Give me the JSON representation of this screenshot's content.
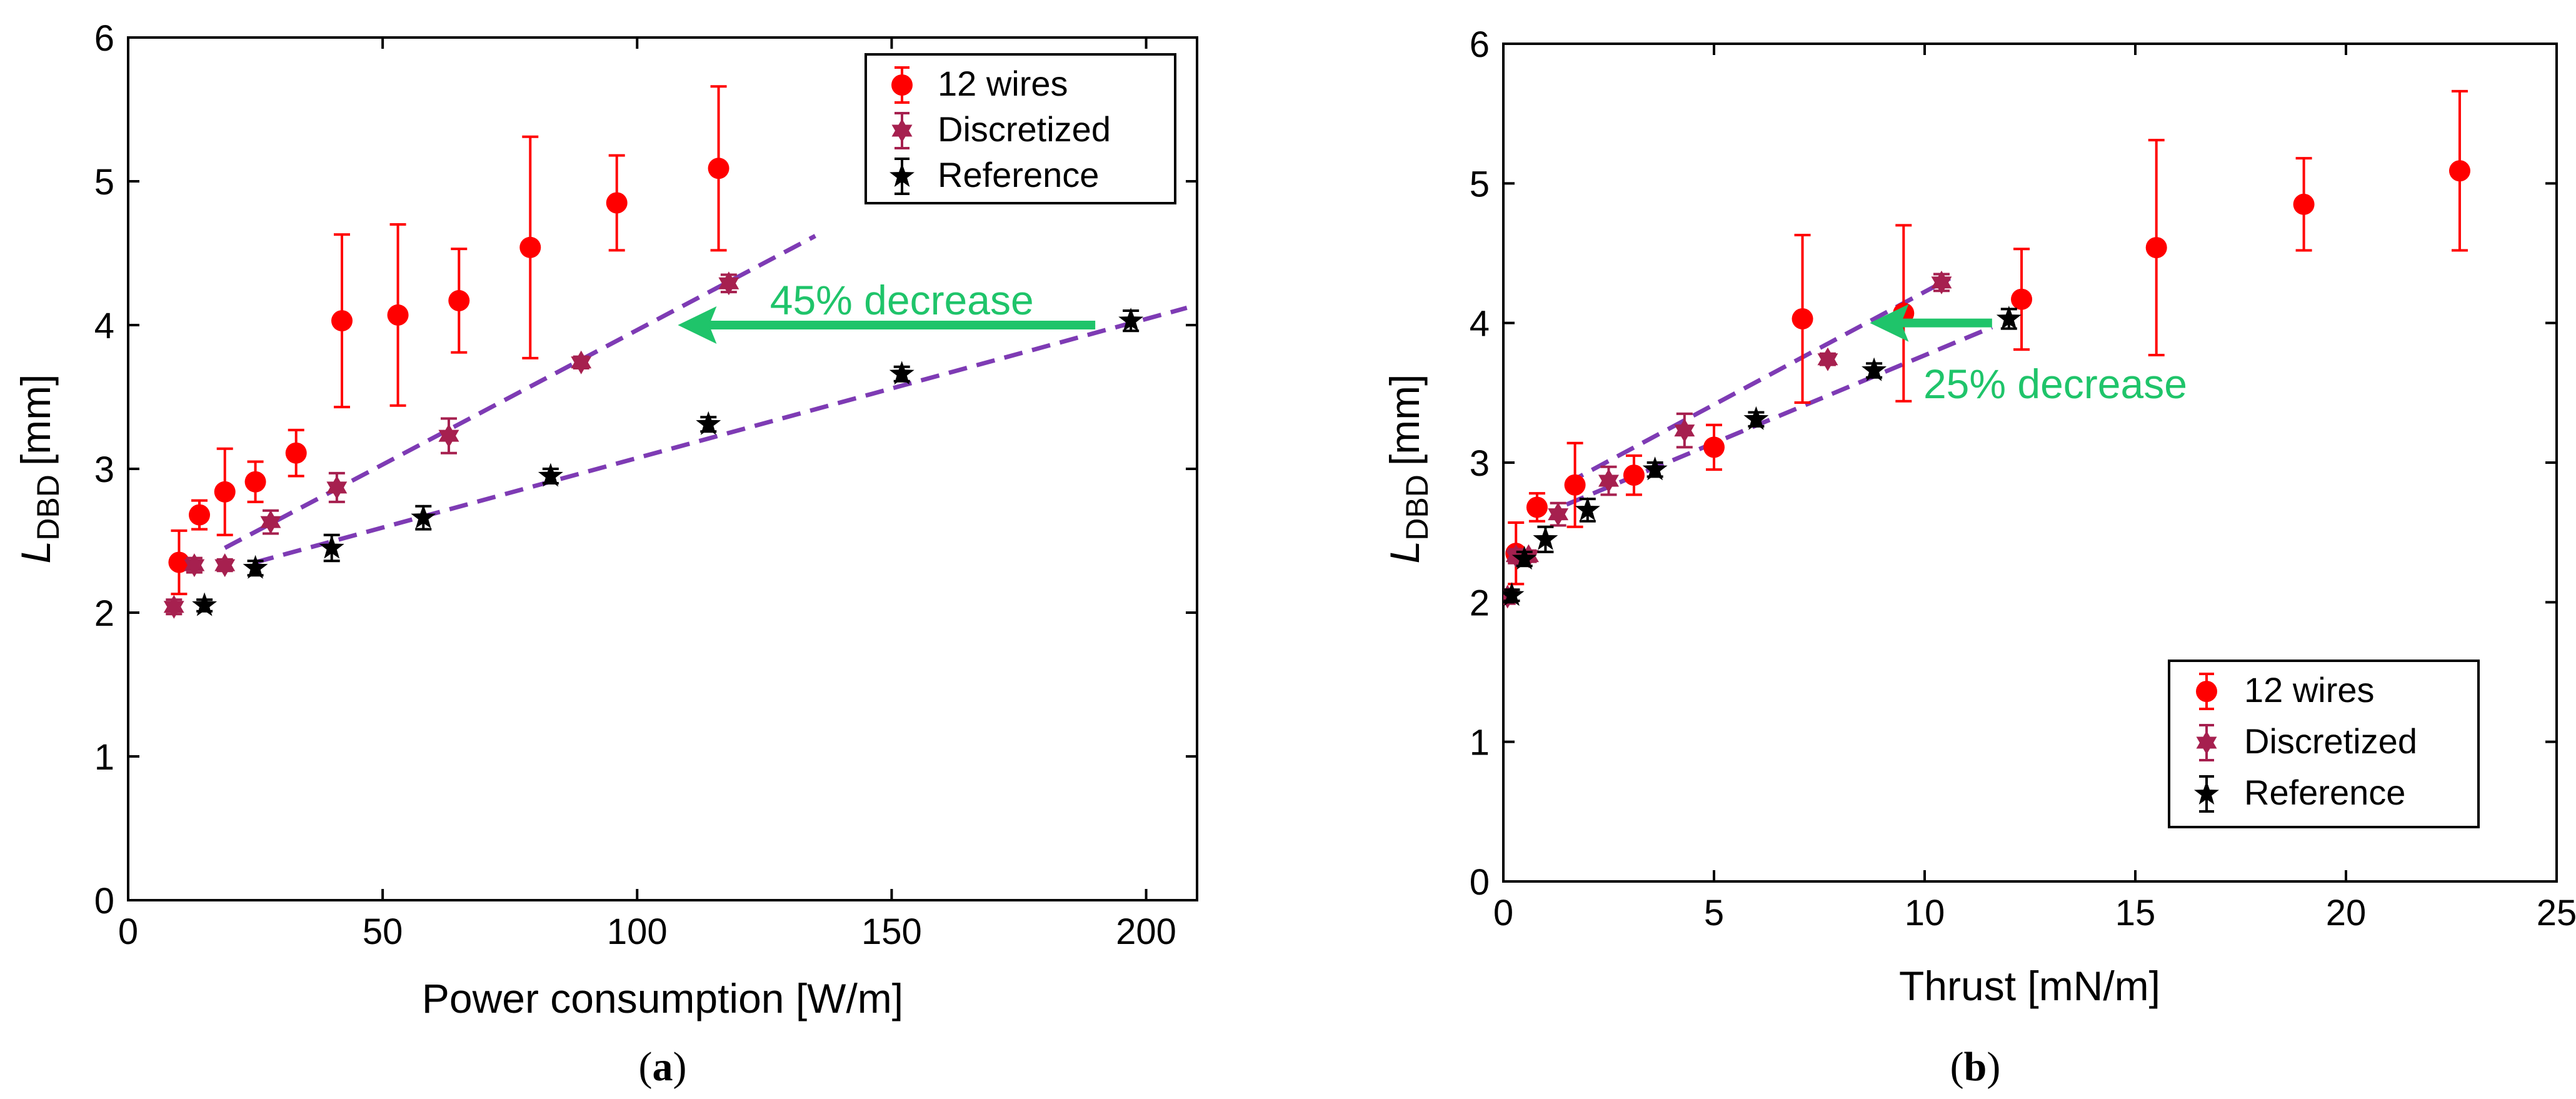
{
  "chart_data": [
    {
      "type": "scatter",
      "panel_label": "a",
      "xlabel": "Power consumption [W/m]",
      "ylabel_main": "L",
      "ylabel_sub": "DBD",
      "ylabel_unit": "[mm]",
      "xlim": [
        0,
        210
      ],
      "ylim": [
        0,
        6
      ],
      "xticks": [
        0,
        50,
        100,
        150,
        200
      ],
      "yticks": [
        0,
        1,
        2,
        3,
        4,
        5,
        6
      ],
      "legend_position": "top-right",
      "colors": {
        "twelve_wires": "#ff0000",
        "discretized": "#a6204f",
        "reference": "#000000",
        "trend": "#7e3bb4",
        "arrow": "#1fc46a"
      },
      "series": [
        {
          "name": "12 wires",
          "marker": "circle",
          "x": [
            10,
            14,
            19,
            25,
            33,
            42,
            53,
            65,
            79,
            96,
            116
          ],
          "y": [
            2.35,
            2.68,
            2.84,
            2.91,
            3.11,
            4.03,
            4.07,
            4.17,
            4.54,
            4.85,
            5.09
          ],
          "err": [
            0.22,
            0.1,
            0.3,
            0.14,
            0.16,
            0.6,
            0.63,
            0.36,
            0.77,
            0.33,
            0.57
          ]
        },
        {
          "name": "Discretized",
          "marker": "hexagram",
          "x": [
            9,
            13,
            19,
            28,
            41,
            63,
            89,
            118
          ],
          "y": [
            2.04,
            2.33,
            2.33,
            2.63,
            2.87,
            3.23,
            3.74,
            4.29
          ],
          "err": [
            0.05,
            0.05,
            0.04,
            0.08,
            0.1,
            0.12,
            0.04,
            0.06
          ]
        },
        {
          "name": "Reference",
          "marker": "star",
          "x": [
            15,
            25,
            40,
            58,
            83,
            114,
            152,
            197
          ],
          "y": [
            2.05,
            2.31,
            2.45,
            2.66,
            2.95,
            3.31,
            3.66,
            4.03
          ],
          "err": [
            0.04,
            0.05,
            0.09,
            0.08,
            0.05,
            0.05,
            0.05,
            0.07
          ]
        }
      ],
      "trend_lines": [
        {
          "name": "discretized-trend",
          "x": [
            19,
            135
          ],
          "y": [
            2.45,
            4.62
          ]
        },
        {
          "name": "reference-trend",
          "x": [
            25,
            208
          ],
          "y": [
            2.35,
            4.12
          ]
        }
      ],
      "annotation": {
        "text": "45% decrease",
        "arrow_from": [
          190,
          4.0
        ],
        "arrow_to": [
          108,
          4.0
        ],
        "text_at": [
          152,
          4.17
        ]
      }
    },
    {
      "type": "scatter",
      "panel_label": "b",
      "xlabel": "Thrust [mN/m]",
      "ylabel_main": "L",
      "ylabel_sub": "DBD",
      "ylabel_unit": "[mm]",
      "xlim": [
        0,
        25
      ],
      "ylim": [
        0,
        6
      ],
      "xticks": [
        0,
        5,
        10,
        15,
        20,
        25
      ],
      "yticks": [
        0,
        1,
        2,
        3,
        4,
        5,
        6
      ],
      "legend_position": "bottom-right",
      "colors": {
        "twelve_wires": "#ff0000",
        "discretized": "#a6204f",
        "reference": "#000000",
        "trend": "#7e3bb4",
        "arrow": "#1fc46a"
      },
      "series": [
        {
          "name": "12 wires",
          "marker": "circle",
          "x": [
            0.3,
            0.8,
            1.7,
            3.1,
            5.0,
            7.1,
            9.5,
            12.3,
            15.5,
            19.0,
            22.7
          ],
          "y": [
            2.35,
            2.68,
            2.84,
            2.91,
            3.11,
            4.03,
            4.07,
            4.17,
            4.54,
            4.85,
            5.09
          ],
          "err": [
            0.22,
            0.1,
            0.3,
            0.14,
            0.16,
            0.6,
            0.63,
            0.36,
            0.77,
            0.33,
            0.57
          ]
        },
        {
          "name": "Discretized",
          "marker": "hexagram",
          "x": [
            0.1,
            0.3,
            0.6,
            1.3,
            2.5,
            4.3,
            7.7,
            10.4
          ],
          "y": [
            2.04,
            2.33,
            2.33,
            2.63,
            2.87,
            3.23,
            3.74,
            4.29
          ],
          "err": [
            0.05,
            0.05,
            0.04,
            0.08,
            0.1,
            0.12,
            0.04,
            0.06
          ]
        },
        {
          "name": "Reference",
          "marker": "star",
          "x": [
            0.2,
            0.5,
            1.0,
            2.0,
            3.6,
            6.0,
            8.8,
            12.0
          ],
          "y": [
            2.05,
            2.31,
            2.45,
            2.66,
            2.95,
            3.31,
            3.66,
            4.03
          ],
          "err": [
            0.04,
            0.05,
            0.09,
            0.08,
            0.05,
            0.05,
            0.05,
            0.07
          ]
        }
      ],
      "trend_lines": [
        {
          "name": "discretized-trend",
          "x": [
            1.5,
            10.6
          ],
          "y": [
            2.85,
            4.32
          ]
        },
        {
          "name": "reference-trend",
          "x": [
            1.5,
            11.6
          ],
          "y": [
            2.7,
            3.97
          ]
        }
      ],
      "annotation": {
        "text": "25% decrease",
        "arrow_from": [
          11.6,
          4.0
        ],
        "arrow_to": [
          8.7,
          4.0
        ],
        "text_at": [
          13.1,
          3.56
        ]
      }
    }
  ]
}
